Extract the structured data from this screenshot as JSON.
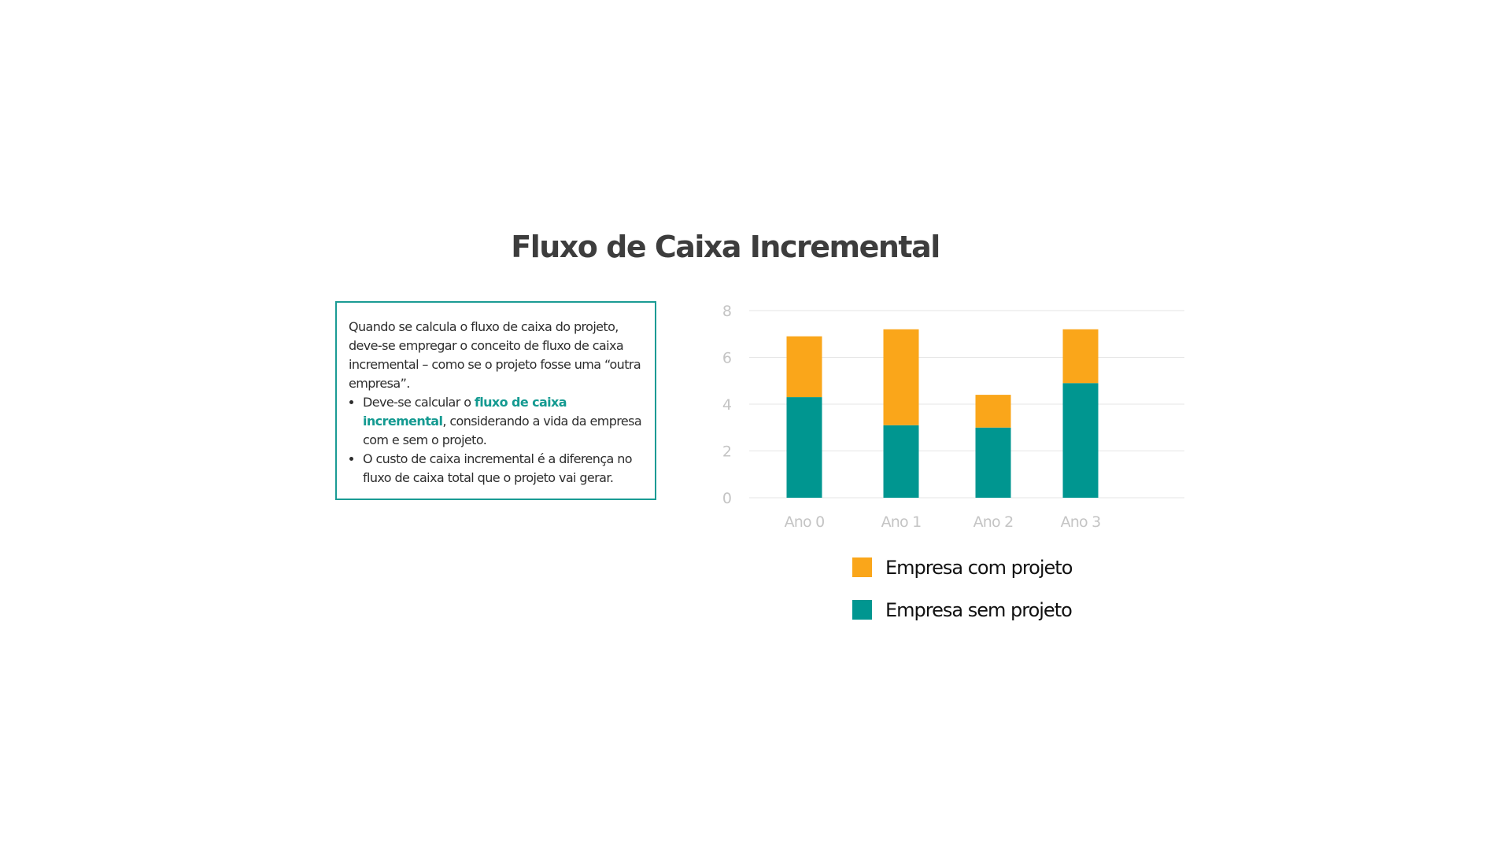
{
  "slide": {
    "title": "Fluxo de Caixa Incremental"
  },
  "textbox": {
    "intro": "Quando se calcula o fluxo de caixa do projeto, deve-se empregar o conceito de fluxo de caixa incremental – como se o projeto fosse uma “outra empresa”.",
    "bullet1_pre": "Deve-se calcular o ",
    "bullet1_highlight": "fluxo de caixa incremental",
    "bullet1_post": ", considerando a vida da empresa com e sem o projeto.",
    "bullet2": "O custo de caixa incremental é a diferença no fluxo de caixa total que o projeto vai gerar.",
    "highlight_color": "#149a91",
    "border_color": "#1a9b94"
  },
  "chart_data": {
    "type": "bar",
    "stacked": true,
    "categories": [
      "Ano 0",
      "Ano 1",
      "Ano 2",
      "Ano 3"
    ],
    "series": [
      {
        "name": "Empresa sem projeto",
        "values": [
          4.3,
          3.1,
          3.0,
          4.9
        ],
        "color": "#009690"
      },
      {
        "name": "Empresa com projeto",
        "values": [
          2.6,
          4.1,
          1.4,
          2.3
        ],
        "color": "#faa61a"
      }
    ],
    "yticks": [
      "0",
      "2",
      "4",
      "6",
      "8"
    ],
    "ylim": [
      0,
      8
    ],
    "grid": true,
    "legend": "bottom",
    "legend_order": [
      "Empresa com projeto",
      "Empresa sem projeto"
    ]
  }
}
